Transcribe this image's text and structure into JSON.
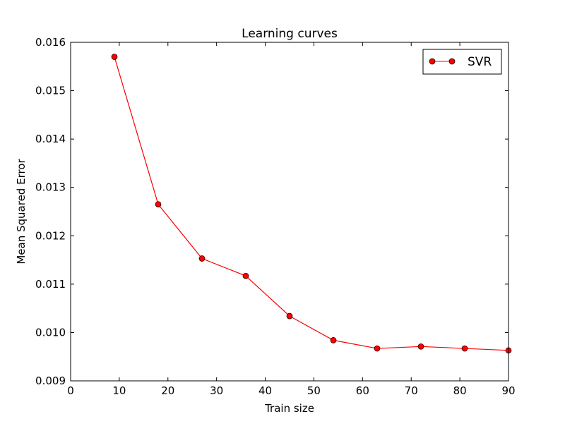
{
  "chart_data": {
    "type": "line",
    "title": "Learning curves",
    "xlabel": "Train size",
    "ylabel": "Mean Squared Error",
    "xlim": [
      0,
      90
    ],
    "ylim": [
      0.009,
      0.016
    ],
    "xticks": [
      0,
      10,
      20,
      30,
      40,
      50,
      60,
      70,
      80,
      90
    ],
    "xtick_labels": [
      "0",
      "10",
      "20",
      "30",
      "40",
      "50",
      "60",
      "70",
      "80",
      "90"
    ],
    "yticks": [
      0.009,
      0.01,
      0.011,
      0.012,
      0.013,
      0.014,
      0.015,
      0.016
    ],
    "ytick_labels": [
      "0.009",
      "0.010",
      "0.011",
      "0.012",
      "0.013",
      "0.014",
      "0.015",
      "0.016"
    ],
    "grid": false,
    "legend_position": "top-right",
    "series": [
      {
        "name": "SVR",
        "color": "#ff0000",
        "marker": "circle",
        "x": [
          9,
          18,
          27,
          36,
          45,
          54,
          63,
          72,
          81,
          90
        ],
        "y": [
          0.0157,
          0.01265,
          0.01153,
          0.01117,
          0.01034,
          0.00984,
          0.00967,
          0.00971,
          0.00967,
          0.00963
        ]
      }
    ]
  }
}
